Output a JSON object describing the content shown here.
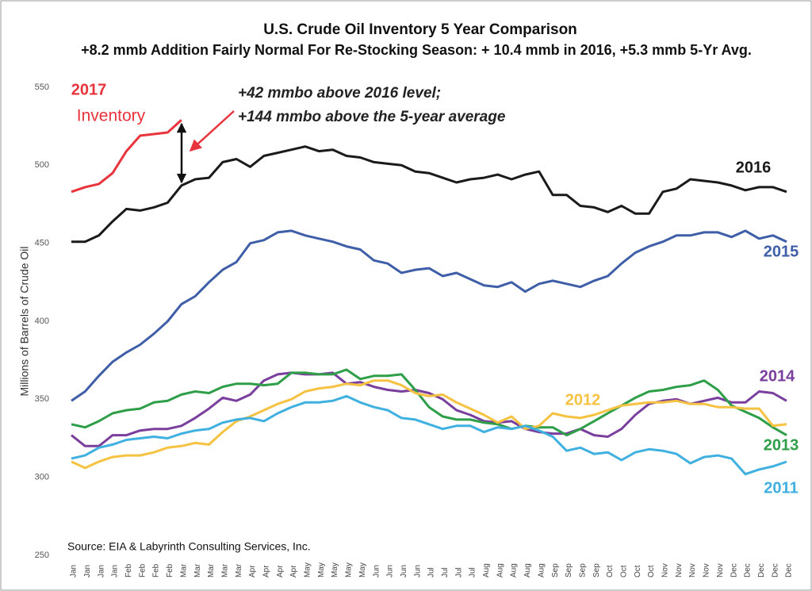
{
  "chart_data": {
    "type": "line",
    "title": "U.S. Crude Oil Inventory 5 Year Comparison",
    "subtitle": "+8.2 mmb Addition Fairly Normal For Re-Stocking Season: + 10.4 mmb in 2016, +5.3 mmb 5-Yr Avg.",
    "y_label": "Millions of Barrels of Crude Oil",
    "annotations": [
      "Inventory",
      "+42 mmbo above 2016 level;",
      "+144 mmbo above the 5-year average"
    ],
    "source": "Source:  EIA & Labyrinth Consulting Services, Inc.",
    "categories": [
      "Jan",
      "Jan",
      "Jan",
      "Jan",
      "Feb",
      "Feb",
      "Feb",
      "Feb",
      "Mar",
      "Mar",
      "Mar",
      "Mar",
      "Mar",
      "Apr",
      "Apr",
      "Apr",
      "Apr",
      "May",
      "May",
      "May",
      "May",
      "May",
      "Jun",
      "Jun",
      "Jun",
      "Jun",
      "Jul",
      "Jul",
      "Jul",
      "Jul",
      "Aug",
      "Aug",
      "Aug",
      "Aug",
      "Aug",
      "Sep",
      "Sep",
      "Sep",
      "Sep",
      "Oct",
      "Oct",
      "Oct",
      "Oct",
      "Nov",
      "Nov",
      "Nov",
      "Nov",
      "Nov",
      "Dec",
      "Dec",
      "Dec",
      "Dec",
      "Dec"
    ],
    "ylim": [
      250,
      550
    ],
    "yticks": [
      250,
      300,
      350,
      400,
      450,
      500,
      550
    ],
    "grid": false,
    "series": [
      {
        "name": "2016",
        "color": "#1a1a1a",
        "values": [
          451,
          451,
          455,
          464,
          472,
          471,
          473,
          476,
          487,
          491,
          492,
          502,
          504,
          499,
          506,
          508,
          510,
          512,
          509,
          510,
          506,
          505,
          502,
          501,
          500,
          496,
          495,
          492,
          489,
          491,
          492,
          494,
          491,
          494,
          496,
          481,
          481,
          474,
          473,
          470,
          474,
          469,
          469,
          483,
          485,
          491,
          490,
          489,
          487,
          484,
          486,
          486,
          483
        ]
      },
      {
        "name": "2017",
        "color": "#e8343c",
        "values": [
          483,
          486,
          488,
          495,
          509,
          519,
          520,
          521,
          529,
          null,
          null,
          null,
          null,
          null,
          null,
          null,
          null,
          null,
          null,
          null,
          null,
          null,
          null,
          null,
          null,
          null,
          null,
          null,
          null,
          null,
          null,
          null,
          null,
          null,
          null,
          null,
          null,
          null,
          null,
          null,
          null,
          null,
          null,
          null,
          null,
          null,
          null,
          null,
          null,
          null,
          null,
          null,
          null
        ]
      },
      {
        "name": "2015",
        "color": "#3f5ea8",
        "values": [
          349,
          355,
          365,
          374,
          380,
          385,
          392,
          400,
          411,
          416,
          425,
          433,
          438,
          450,
          452,
          457,
          458,
          455,
          453,
          451,
          448,
          446,
          439,
          437,
          431,
          433,
          434,
          429,
          431,
          427,
          423,
          422,
          425,
          419,
          424,
          426,
          424,
          422,
          426,
          429,
          437,
          444,
          448,
          451,
          455,
          455,
          457,
          457,
          454,
          458,
          453,
          455,
          451
        ]
      },
      {
        "name": "2014",
        "color": "#7a3e9d",
        "values": [
          327,
          320,
          320,
          327,
          327,
          330,
          331,
          331,
          333,
          338,
          344,
          351,
          349,
          353,
          362,
          366,
          367,
          366,
          366,
          367,
          360,
          361,
          358,
          356,
          355,
          356,
          354,
          350,
          343,
          340,
          336,
          335,
          336,
          331,
          329,
          328,
          328,
          331,
          327,
          326,
          331,
          340,
          347,
          349,
          350,
          347,
          349,
          351,
          348,
          348,
          355,
          354,
          349
        ]
      },
      {
        "name": "2013",
        "color": "#2e9e48",
        "values": [
          334,
          332,
          336,
          341,
          343,
          344,
          348,
          349,
          353,
          355,
          354,
          358,
          360,
          360,
          359,
          360,
          367,
          367,
          366,
          366,
          369,
          363,
          365,
          365,
          366,
          356,
          345,
          339,
          337,
          337,
          335,
          334,
          331,
          333,
          332,
          332,
          327,
          331,
          336,
          341,
          346,
          351,
          355,
          356,
          358,
          359,
          362,
          356,
          346,
          342,
          338,
          332,
          327
        ]
      },
      {
        "name": "2012",
        "color": "#f5c242",
        "values": [
          310,
          306,
          310,
          313,
          314,
          314,
          316,
          319,
          320,
          322,
          321,
          329,
          336,
          339,
          343,
          347,
          350,
          355,
          357,
          358,
          360,
          359,
          362,
          362,
          359,
          354,
          352,
          353,
          348,
          344,
          340,
          335,
          339,
          331,
          333,
          341,
          339,
          338,
          340,
          343,
          346,
          347,
          348,
          348,
          349,
          347,
          347,
          345,
          345,
          344,
          344,
          333,
          334
        ]
      },
      {
        "name": "2011",
        "color": "#3fb0e0",
        "values": [
          312,
          314,
          319,
          321,
          324,
          325,
          326,
          325,
          328,
          330,
          331,
          335,
          337,
          338,
          336,
          341,
          345,
          348,
          348,
          349,
          352,
          348,
          345,
          343,
          338,
          337,
          334,
          331,
          333,
          333,
          329,
          332,
          331,
          333,
          330,
          326,
          317,
          319,
          315,
          316,
          311,
          316,
          318,
          317,
          315,
          309,
          313,
          314,
          312,
          302,
          305,
          307,
          310
        ]
      }
    ]
  }
}
